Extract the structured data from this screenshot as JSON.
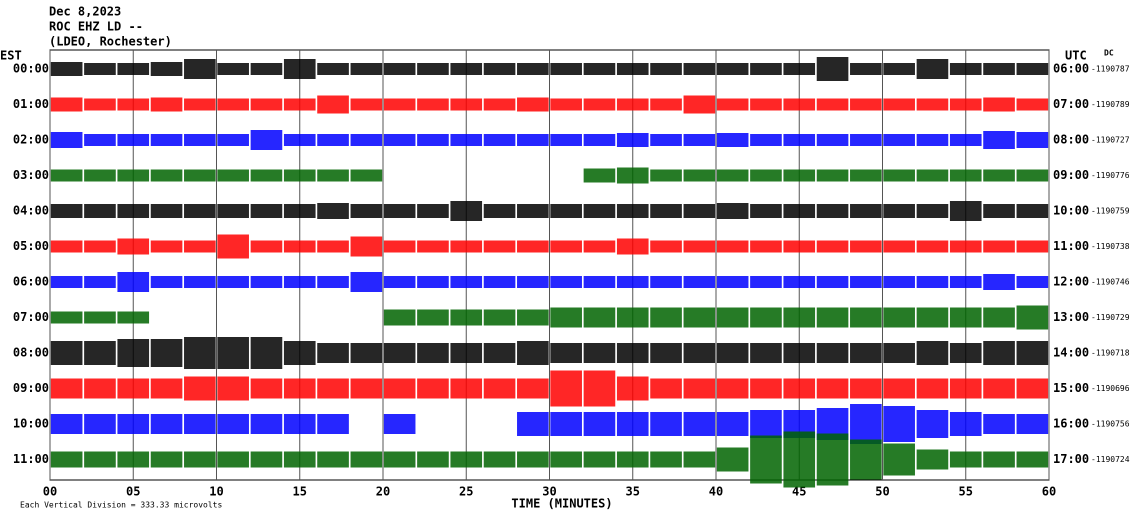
{
  "chart_data": {
    "type": "helicorder",
    "title_lines": [
      "Dec 8,2023",
      "ROC EHZ LD --",
      "(LDEO, Rochester)"
    ],
    "left_axis_label": "EST",
    "right_axis_label": "UTC",
    "dc_label": "DC",
    "xlabel": "TIME (MINUTES)",
    "footer": "Each Vertical Division =  333.33 microvolts",
    "xlim": [
      0,
      60
    ],
    "xticks": [
      {
        "value": 0,
        "label": "00"
      },
      {
        "value": 5,
        "label": "05"
      },
      10,
      15,
      20,
      25,
      30,
      35,
      40,
      45,
      50,
      55,
      60
    ],
    "x": [
      1,
      3,
      5,
      7,
      9,
      11,
      13,
      15,
      17,
      19,
      21,
      23,
      25,
      27,
      29,
      31,
      33,
      35,
      37,
      39,
      41,
      43,
      45,
      47,
      49,
      51,
      53,
      55,
      57,
      59
    ],
    "series": [
      {
        "name": "00:00",
        "utc": "06:00",
        "dc": -1190787,
        "color": "#000000",
        "values": [
          7,
          6,
          6,
          7,
          10,
          6,
          6,
          10,
          6,
          6,
          6,
          6,
          6,
          6,
          6,
          6,
          6,
          6,
          6,
          6,
          6,
          6,
          6,
          12,
          6,
          6,
          10,
          6,
          6,
          6
        ]
      },
      {
        "name": "01:00",
        "utc": "07:00",
        "dc": -1190789,
        "color": "#ff0000",
        "values": [
          7,
          6,
          6,
          7,
          6,
          6,
          6,
          6,
          9,
          6,
          6,
          6,
          6,
          6,
          7,
          6,
          6,
          6,
          6,
          9,
          6,
          6,
          6,
          6,
          6,
          6,
          6,
          6,
          7,
          6
        ]
      },
      {
        "name": "02:00",
        "utc": "08:00",
        "dc": -1190727,
        "color": "#0000ff",
        "values": [
          8,
          6,
          6,
          6,
          6,
          6,
          10,
          6,
          6,
          6,
          6,
          6,
          6,
          6,
          6,
          6,
          6,
          7,
          6,
          6,
          7,
          6,
          6,
          6,
          6,
          6,
          6,
          6,
          9,
          8
        ]
      },
      {
        "name": "03:00",
        "utc": "09:00",
        "dc": -1190776,
        "color": "#006400",
        "values": [
          6,
          6,
          6,
          6,
          6,
          6,
          6,
          6,
          6,
          6,
          null,
          null,
          null,
          null,
          null,
          null,
          7,
          8,
          6,
          6,
          6,
          6,
          6,
          6,
          6,
          6,
          6,
          6,
          6,
          6
        ]
      },
      {
        "name": "04:00",
        "utc": "10:00",
        "dc": -1190759,
        "color": "#000000",
        "values": [
          7,
          7,
          7,
          7,
          7,
          7,
          7,
          7,
          8,
          7,
          7,
          7,
          10,
          7,
          7,
          7,
          7,
          7,
          7,
          7,
          8,
          7,
          7,
          7,
          7,
          7,
          7,
          10,
          7,
          7
        ]
      },
      {
        "name": "05:00",
        "utc": "11:00",
        "dc": -1190738,
        "color": "#ff0000",
        "values": [
          6,
          6,
          8,
          6,
          6,
          12,
          6,
          6,
          6,
          10,
          6,
          6,
          6,
          6,
          6,
          6,
          6,
          8,
          6,
          6,
          6,
          6,
          6,
          6,
          6,
          6,
          6,
          6,
          6,
          6
        ]
      },
      {
        "name": "06:00",
        "utc": "12:00",
        "dc": -1190746,
        "color": "#0000ff",
        "values": [
          6,
          6,
          10,
          6,
          6,
          6,
          6,
          6,
          6,
          10,
          6,
          6,
          6,
          6,
          6,
          6,
          6,
          6,
          6,
          6,
          6,
          6,
          6,
          6,
          6,
          6,
          6,
          6,
          8,
          6
        ]
      },
      {
        "name": "07:00",
        "utc": "13:00",
        "dc": -1190729,
        "color": "#006400",
        "values": [
          6,
          6,
          6,
          null,
          null,
          null,
          null,
          null,
          null,
          null,
          8,
          8,
          8,
          8,
          8,
          10,
          10,
          10,
          10,
          10,
          10,
          10,
          10,
          10,
          10,
          10,
          10,
          10,
          10,
          12
        ]
      },
      {
        "name": "08:00",
        "utc": "14:00",
        "dc": -1190718,
        "color": "#000000",
        "values": [
          12,
          12,
          14,
          14,
          16,
          16,
          16,
          12,
          10,
          10,
          10,
          10,
          10,
          10,
          12,
          10,
          10,
          10,
          10,
          10,
          10,
          10,
          10,
          10,
          10,
          10,
          12,
          10,
          12,
          12
        ]
      },
      {
        "name": "09:00",
        "utc": "15:00",
        "dc": -1190696,
        "color": "#ff0000",
        "values": [
          10,
          10,
          10,
          10,
          12,
          12,
          10,
          10,
          10,
          10,
          10,
          10,
          10,
          10,
          10,
          18,
          18,
          12,
          10,
          10,
          10,
          10,
          10,
          10,
          10,
          10,
          10,
          10,
          10,
          10
        ]
      },
      {
        "name": "10:00",
        "utc": "16:00",
        "dc": -1190756,
        "color": "#0000ff",
        "values": [
          10,
          10,
          10,
          10,
          10,
          10,
          10,
          10,
          10,
          null,
          10,
          null,
          null,
          null,
          12,
          12,
          12,
          12,
          12,
          12,
          12,
          14,
          14,
          16,
          20,
          18,
          14,
          12,
          10,
          10
        ]
      },
      {
        "name": "11:00",
        "utc": "17:00",
        "dc": -1190724,
        "color": "#006400",
        "values": [
          8,
          8,
          8,
          8,
          8,
          8,
          8,
          8,
          8,
          8,
          8,
          8,
          8,
          8,
          8,
          8,
          8,
          8,
          8,
          8,
          12,
          24,
          28,
          26,
          20,
          16,
          10,
          8,
          8,
          8
        ]
      }
    ]
  }
}
